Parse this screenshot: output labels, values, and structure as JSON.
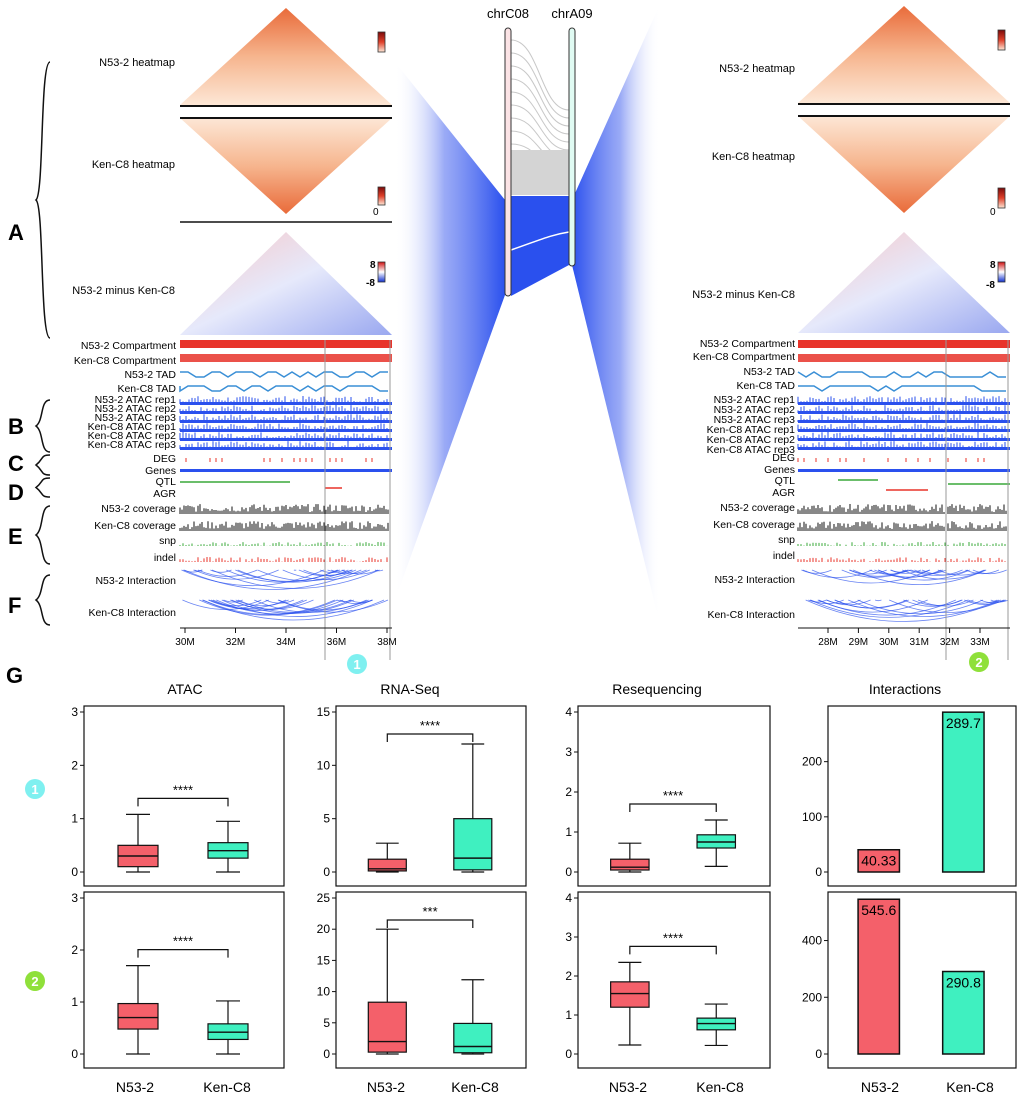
{
  "chromosomes": [
    "chrC08",
    "chrA09"
  ],
  "panel_letters": [
    "A",
    "B",
    "C",
    "D",
    "E",
    "F",
    "G"
  ],
  "colors": {
    "n53": "#f4606a",
    "ken": "#3ff0c0",
    "blue": "#2a50ee",
    "red": "#e8332a",
    "green": "#3aa93a",
    "region1": "#7ff0f0",
    "region2": "#8fe03a"
  },
  "left_block": {
    "heatmap_labels": [
      "N53-2 heatmap",
      "Ken-C8 heatmap"
    ],
    "scale_zero": "0",
    "diff_label": "N53-2 minus Ken-C8",
    "diff_scale": [
      "8",
      "-8"
    ],
    "track_labels": {
      "compartment": [
        "N53-2 Compartment",
        "Ken-C8 Compartment"
      ],
      "tad": [
        "N53-2 TAD",
        "Ken-C8 TAD"
      ],
      "atac": [
        "N53-2 ATAC rep1",
        "N53-2 ATAC rep2",
        "N53-2 ATAC rep3",
        "Ken-C8 ATAC rep1",
        "Ken-C8 ATAC rep2",
        "Ken-C8 ATAC rep3"
      ],
      "deg_genes": [
        "DEG",
        "Genes"
      ],
      "qtl_agr": [
        "QTL",
        "AGR"
      ],
      "coverage": [
        "N53-2 coverage",
        "Ken-C8 coverage",
        "snp",
        "indel"
      ],
      "interaction": [
        "N53-2 Interaction",
        "Ken-C8 Interaction"
      ]
    },
    "axis_ticks": [
      "30M",
      "32M",
      "34M",
      "36M",
      "38M"
    ],
    "region_marker": "1"
  },
  "right_block": {
    "heatmap_labels": [
      "N53-2 heatmap",
      "Ken-C8 heatmap"
    ],
    "scale_zero": "0",
    "diff_label": "N53-2 minus Ken-C8",
    "diff_scale": [
      "8",
      "-8"
    ],
    "axis_ticks": [
      "28M",
      "29M",
      "30M",
      "31M",
      "32M",
      "33M"
    ],
    "region_marker": "2"
  },
  "panel_g": {
    "row_markers": [
      "1",
      "2"
    ],
    "column_titles": [
      "ATAC",
      "RNA-Seq",
      "Resequencing",
      "Interactions"
    ],
    "groups": [
      "N53-2",
      "Ken-C8"
    ]
  },
  "chart_data": [
    {
      "type": "box",
      "panel": "ATAC",
      "region": "1",
      "categories": [
        "N53-2",
        "Ken-C8"
      ],
      "ylim": [
        0,
        3
      ],
      "yticks": [
        0,
        1,
        2,
        3
      ],
      "boxes": [
        {
          "min": 0.0,
          "q1": 0.1,
          "median": 0.3,
          "q3": 0.5,
          "max": 1.08
        },
        {
          "min": 0.0,
          "q1": 0.26,
          "median": 0.4,
          "q3": 0.55,
          "max": 0.95
        }
      ],
      "significance": "****"
    },
    {
      "type": "box",
      "panel": "RNA-Seq",
      "region": "1",
      "categories": [
        "N53-2",
        "Ken-C8"
      ],
      "ylim": [
        0,
        15
      ],
      "yticks": [
        0,
        5,
        10,
        15
      ],
      "boxes": [
        {
          "min": 0.0,
          "q1": 0.1,
          "median": 0.3,
          "q3": 1.2,
          "max": 2.7
        },
        {
          "min": 0.0,
          "q1": 0.2,
          "median": 1.3,
          "q3": 5.0,
          "max": 12.0
        }
      ],
      "significance": "****"
    },
    {
      "type": "box",
      "panel": "Resequencing",
      "region": "1",
      "categories": [
        "N53-2",
        "Ken-C8"
      ],
      "ylim": [
        0,
        4
      ],
      "yticks": [
        0,
        1,
        2,
        3,
        4
      ],
      "boxes": [
        {
          "min": 0.0,
          "q1": 0.05,
          "median": 0.12,
          "q3": 0.32,
          "max": 0.72
        },
        {
          "min": 0.14,
          "q1": 0.6,
          "median": 0.75,
          "q3": 0.93,
          "max": 1.3
        }
      ],
      "significance": "****"
    },
    {
      "type": "bar",
      "panel": "Interactions",
      "region": "1",
      "categories": [
        "N53-2",
        "Ken-C8"
      ],
      "values": [
        40.33,
        289.7
      ],
      "labels": [
        "40.33",
        "289.7"
      ],
      "ylim": [
        0,
        290
      ],
      "yticks": [
        0,
        100,
        200
      ]
    },
    {
      "type": "box",
      "panel": "ATAC",
      "region": "2",
      "categories": [
        "N53-2",
        "Ken-C8"
      ],
      "ylim": [
        0,
        3
      ],
      "yticks": [
        0,
        1,
        2,
        3
      ],
      "boxes": [
        {
          "min": 0.0,
          "q1": 0.48,
          "median": 0.7,
          "q3": 0.97,
          "max": 1.7
        },
        {
          "min": 0.0,
          "q1": 0.28,
          "median": 0.42,
          "q3": 0.58,
          "max": 1.02
        }
      ],
      "significance": "****"
    },
    {
      "type": "box",
      "panel": "RNA-Seq",
      "region": "2",
      "categories": [
        "N53-2",
        "Ken-C8"
      ],
      "ylim": [
        0,
        25
      ],
      "yticks": [
        0,
        5,
        10,
        15,
        20,
        25
      ],
      "boxes": [
        {
          "min": 0.0,
          "q1": 0.3,
          "median": 2.0,
          "q3": 8.3,
          "max": 20.0
        },
        {
          "min": 0.0,
          "q1": 0.2,
          "median": 1.2,
          "q3": 4.9,
          "max": 11.9
        }
      ],
      "significance": "***"
    },
    {
      "type": "box",
      "panel": "Resequencing",
      "region": "2",
      "categories": [
        "N53-2",
        "Ken-C8"
      ],
      "ylim": [
        0,
        4
      ],
      "yticks": [
        0,
        1,
        2,
        3,
        4
      ],
      "boxes": [
        {
          "min": 0.23,
          "q1": 1.2,
          "median": 1.55,
          "q3": 1.85,
          "max": 2.35
        },
        {
          "min": 0.22,
          "q1": 0.62,
          "median": 0.78,
          "q3": 0.92,
          "max": 1.28
        }
      ],
      "significance": "****"
    },
    {
      "type": "bar",
      "panel": "Interactions",
      "region": "2",
      "categories": [
        "N53-2",
        "Ken-C8"
      ],
      "values": [
        545.6,
        290.8
      ],
      "labels": [
        "545.6",
        "290.8"
      ],
      "ylim": [
        0,
        550
      ],
      "yticks": [
        0,
        200,
        400
      ]
    }
  ]
}
